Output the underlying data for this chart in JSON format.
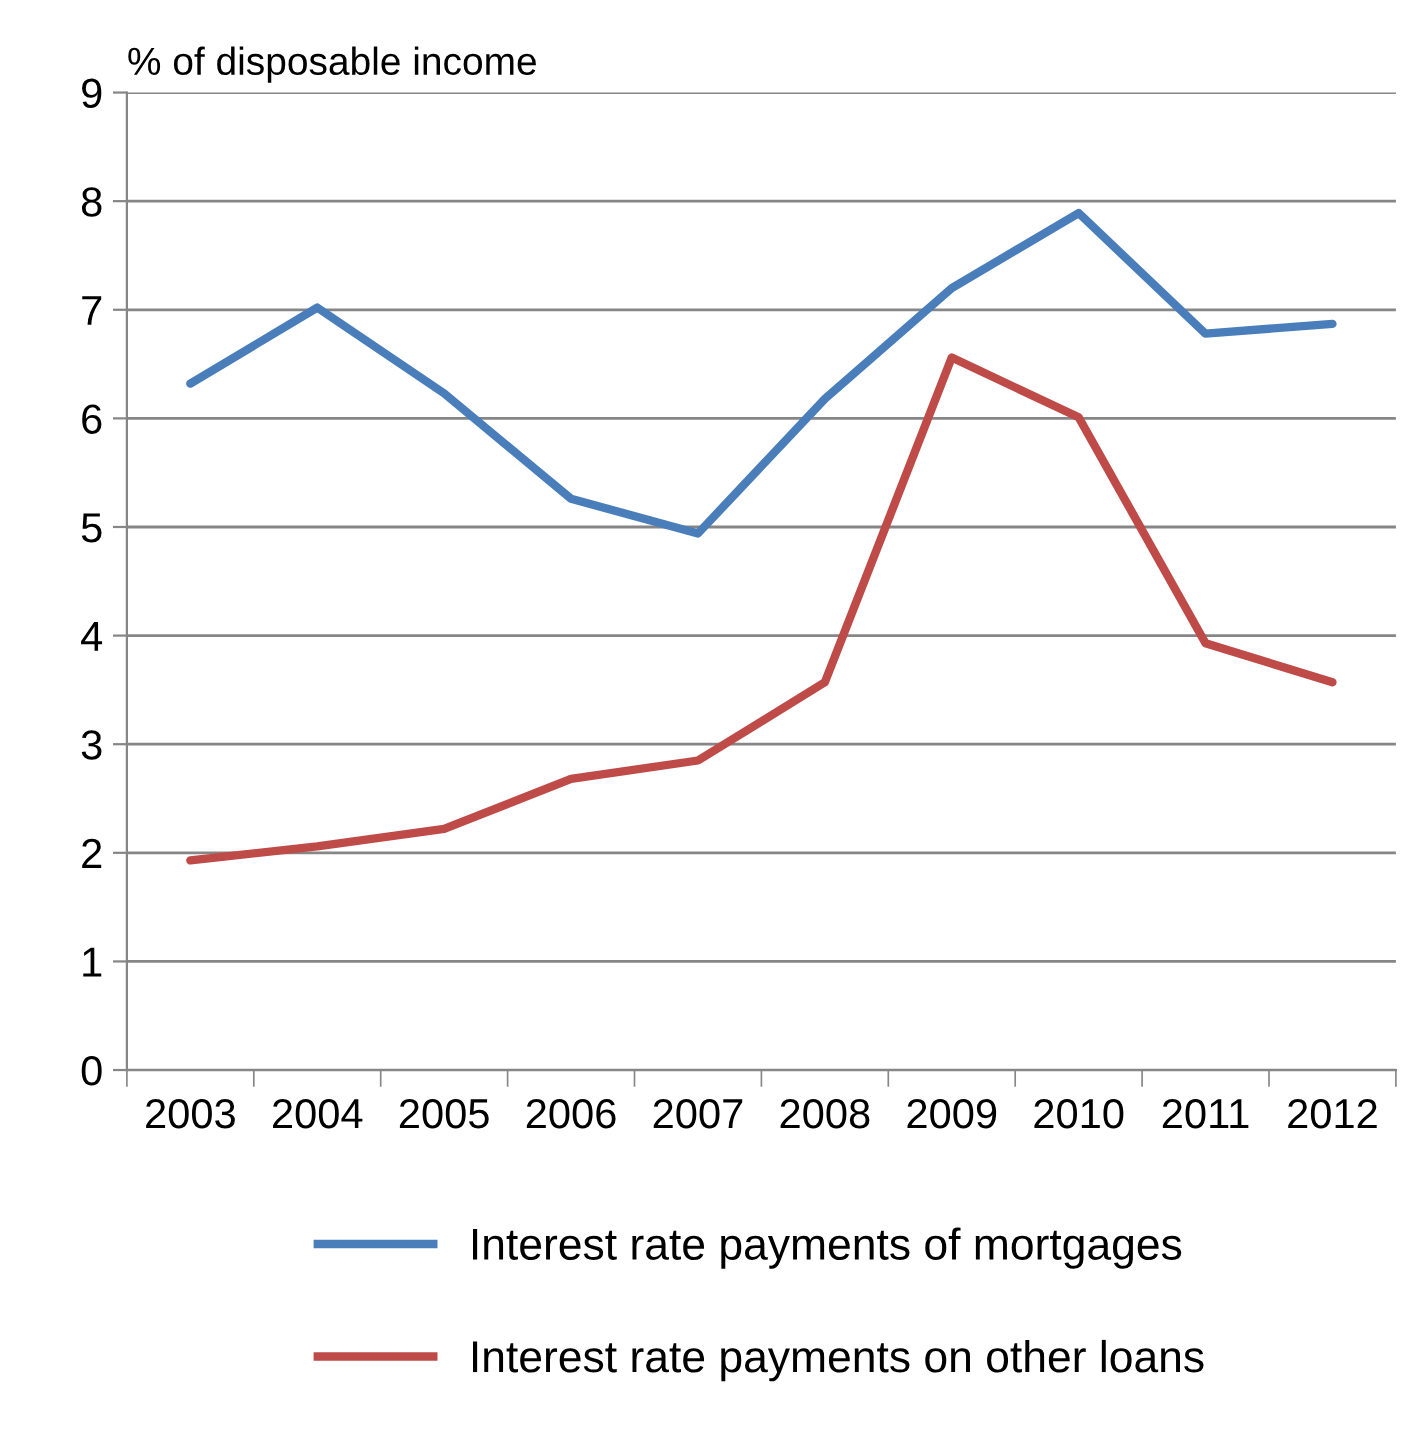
{
  "chart_data": {
    "type": "line",
    "ylabel": "% of disposable income",
    "categories": [
      "2003",
      "2004",
      "2005",
      "2006",
      "2007",
      "2008",
      "2009",
      "2010",
      "2011",
      "2012"
    ],
    "series": [
      {
        "name": "Interest rate payments of mortgages",
        "color": "#4a7ebb",
        "values": [
          6.32,
          7.02,
          6.23,
          5.26,
          4.94,
          6.18,
          7.2,
          7.89,
          6.78,
          6.87
        ]
      },
      {
        "name": "Interest rate payments on other loans",
        "color": "#be4b48",
        "values": [
          1.93,
          2.06,
          2.22,
          2.68,
          2.85,
          3.57,
          6.56,
          6.01,
          3.93,
          3.57
        ]
      }
    ],
    "ylim": [
      0,
      9
    ],
    "yticks": [
      0,
      1,
      2,
      3,
      4,
      5,
      6,
      7,
      8,
      9
    ],
    "grid": "y",
    "legend": "bottom",
    "marker": "none",
    "line_style": "solid"
  }
}
